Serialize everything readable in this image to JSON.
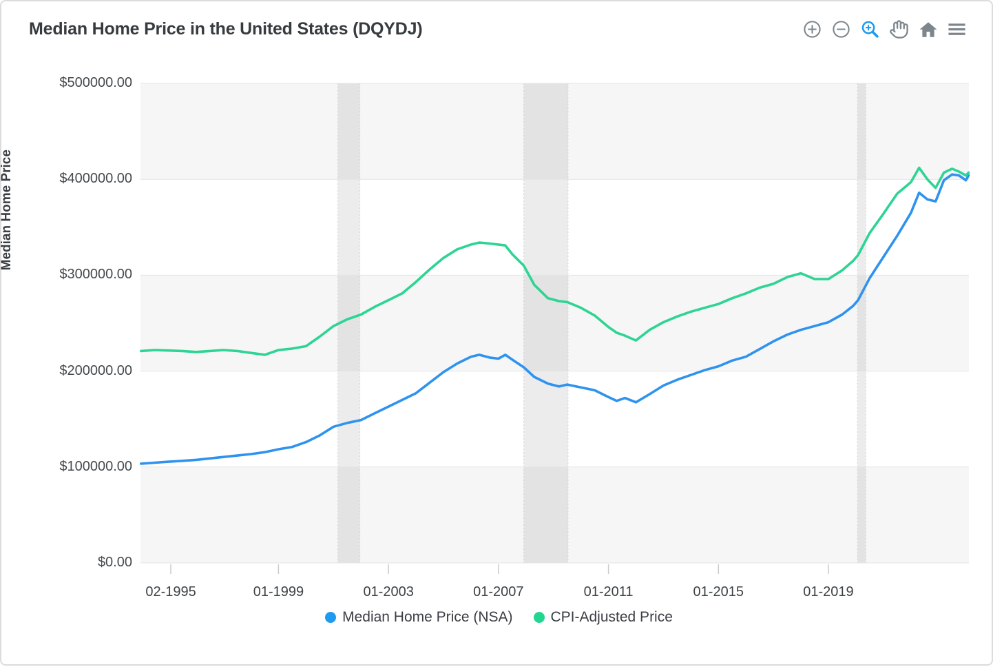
{
  "header": {
    "title": "Median Home Price in the United States (DQYDJ)"
  },
  "modebar": {
    "icon_color": "#7d868c",
    "active_color": "#1d9bf0",
    "buttons": [
      {
        "id": "zoom-in",
        "label": "Zoom in"
      },
      {
        "id": "zoom-out",
        "label": "Zoom out"
      },
      {
        "id": "box-zoom",
        "label": "Box zoom",
        "active": true
      },
      {
        "id": "pan",
        "label": "Pan"
      },
      {
        "id": "home",
        "label": "Reset axes"
      },
      {
        "id": "menu",
        "label": "Menu"
      }
    ]
  },
  "legend": {
    "items": [
      {
        "label": "Median Home Price (NSA)",
        "color": "#1e9bf0"
      },
      {
        "label": "CPI-Adjusted Price",
        "color": "#22d692"
      }
    ]
  },
  "chart_data": {
    "type": "line",
    "title": "Median Home Price in the United States (DQYDJ)",
    "xlabel": "",
    "ylabel": "Median Home Price",
    "x_unit": "decimal_year",
    "xlim": [
      1993.98,
      2024.11
    ],
    "ylim": [
      0,
      500000
    ],
    "grid": "horizontal-stripes",
    "legend_position": "bottom-center",
    "y_ticks": [
      {
        "v": 0,
        "label": "$0.00"
      },
      {
        "v": 100000,
        "label": "$100000.00"
      },
      {
        "v": 200000,
        "label": "$200000.00"
      },
      {
        "v": 300000,
        "label": "$300000.00"
      },
      {
        "v": 400000,
        "label": "$400000.00"
      },
      {
        "v": 500000,
        "label": "$500000.00"
      }
    ],
    "x_ticks": [
      {
        "t": 1995.083,
        "label": "02-1995"
      },
      {
        "t": 1999.0,
        "label": "01-1999"
      },
      {
        "t": 2003.0,
        "label": "01-2003"
      },
      {
        "t": 2007.0,
        "label": "01-2007"
      },
      {
        "t": 2011.0,
        "label": "01-2011"
      },
      {
        "t": 2015.0,
        "label": "01-2015"
      },
      {
        "t": 2019.0,
        "label": "01-2019"
      }
    ],
    "shaded_regions": [
      {
        "name": "recession-2001",
        "x0": 2001.16,
        "x1": 2001.96
      },
      {
        "name": "recession-2008",
        "x0": 2007.92,
        "x1": 2009.53
      },
      {
        "name": "recession-2020",
        "x0": 2020.06,
        "x1": 2020.36
      }
    ],
    "series": [
      {
        "name": "Median Home Price (NSA)",
        "color": "#2e93ee",
        "x": [
          1994.0,
          1994.5,
          1995.0,
          1995.5,
          1996.0,
          1996.5,
          1997.0,
          1997.5,
          1998.0,
          1998.5,
          1999.0,
          1999.5,
          2000.0,
          2000.5,
          2001.0,
          2001.5,
          2002.0,
          2002.5,
          2003.0,
          2003.5,
          2004.0,
          2004.5,
          2005.0,
          2005.5,
          2006.0,
          2006.3,
          2006.7,
          2007.0,
          2007.25,
          2007.5,
          2007.92,
          2008.3,
          2008.8,
          2009.2,
          2009.5,
          2010.0,
          2010.5,
          2011.0,
          2011.3,
          2011.6,
          2012.0,
          2012.5,
          2013.0,
          2013.5,
          2014.0,
          2014.5,
          2015.0,
          2015.5,
          2016.0,
          2016.5,
          2017.0,
          2017.5,
          2018.0,
          2018.5,
          2019.0,
          2019.5,
          2019.9,
          2020.08,
          2020.5,
          2021.0,
          2021.5,
          2022.0,
          2022.3,
          2022.6,
          2022.9,
          2023.2,
          2023.5,
          2023.75,
          2024.0,
          2024.1
        ],
        "y": [
          103500,
          104500,
          105500,
          106500,
          107500,
          109000,
          110500,
          112000,
          113500,
          115500,
          118500,
          121000,
          126000,
          133000,
          142000,
          146000,
          149000,
          156000,
          163000,
          170000,
          177000,
          188000,
          199000,
          208000,
          215000,
          217000,
          214000,
          213000,
          217000,
          212000,
          204000,
          194000,
          187000,
          184000,
          186000,
          183000,
          180000,
          173000,
          169000,
          172000,
          167500,
          176000,
          185000,
          191000,
          196000,
          201000,
          205000,
          211000,
          215000,
          223000,
          231000,
          238000,
          243000,
          247000,
          251000,
          259000,
          268000,
          274000,
          297000,
          319000,
          341000,
          365000,
          386000,
          379000,
          377000,
          399000,
          405000,
          404000,
          399000,
          404000
        ]
      },
      {
        "name": "CPI-Adjusted Price",
        "color": "#2dd494",
        "x": [
          1994.0,
          1994.5,
          1995.0,
          1995.5,
          1996.0,
          1996.5,
          1997.0,
          1997.5,
          1998.0,
          1998.5,
          1999.0,
          1999.5,
          2000.0,
          2000.5,
          2001.0,
          2001.5,
          2002.0,
          2002.5,
          2003.0,
          2003.5,
          2004.0,
          2004.5,
          2005.0,
          2005.5,
          2006.0,
          2006.3,
          2006.7,
          2007.0,
          2007.25,
          2007.5,
          2007.92,
          2008.3,
          2008.8,
          2009.2,
          2009.5,
          2010.0,
          2010.5,
          2011.0,
          2011.3,
          2011.6,
          2012.0,
          2012.5,
          2013.0,
          2013.5,
          2014.0,
          2014.5,
          2015.0,
          2015.5,
          2016.0,
          2016.5,
          2017.0,
          2017.5,
          2018.0,
          2018.5,
          2019.0,
          2019.5,
          2019.9,
          2020.08,
          2020.5,
          2021.0,
          2021.5,
          2022.0,
          2022.3,
          2022.6,
          2022.9,
          2023.2,
          2023.5,
          2023.75,
          2024.0,
          2024.1
        ],
        "y": [
          221000,
          222000,
          221500,
          221000,
          220000,
          221000,
          222000,
          221000,
          219000,
          217000,
          222000,
          223500,
          226000,
          236000,
          247000,
          254000,
          259000,
          267000,
          274000,
          281000,
          293000,
          306000,
          318000,
          327000,
          332000,
          334000,
          333000,
          332000,
          331000,
          322000,
          310000,
          290000,
          276000,
          273000,
          272000,
          266000,
          258000,
          246000,
          240000,
          237000,
          232000,
          243000,
          251000,
          257000,
          262000,
          266000,
          270000,
          276000,
          281000,
          287000,
          291000,
          298000,
          302000,
          296000,
          296000,
          305000,
          315000,
          321000,
          344000,
          364000,
          385000,
          397000,
          412000,
          400000,
          391000,
          407000,
          411000,
          408000,
          404000,
          407000
        ]
      }
    ]
  }
}
